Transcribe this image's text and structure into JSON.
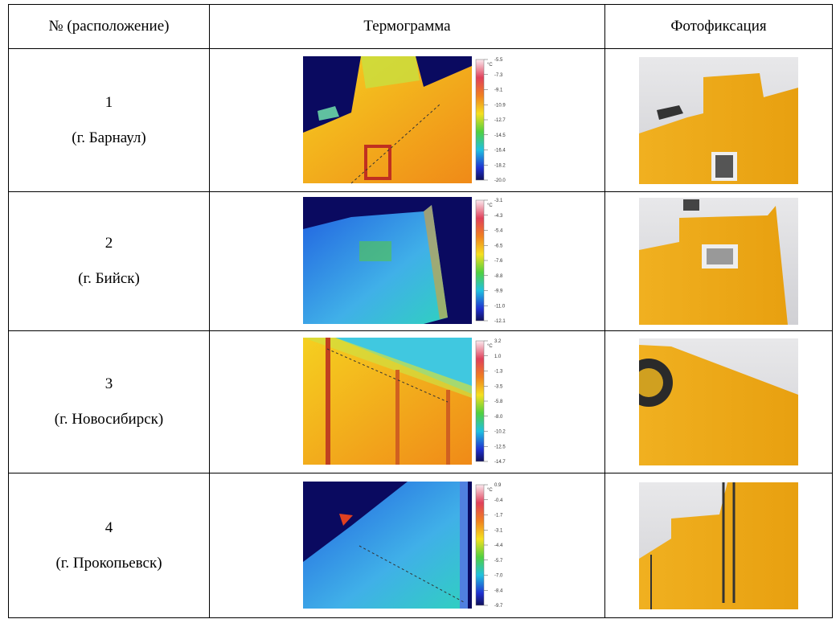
{
  "table": {
    "header": [
      "№ (расположение)",
      "Термограмма",
      "Фотофиксация"
    ],
    "rows": [
      {
        "number": "1",
        "city": "(г. Барнаул)",
        "unit": "°C",
        "scale": [
          "-5.5",
          "-7.3",
          "-9.1",
          "-10.9",
          "-12.7",
          "-14.5",
          "-16.4",
          "-18.2",
          "-20.0"
        ]
      },
      {
        "number": "2",
        "city": "(г. Бийск)",
        "unit": "°C",
        "scale": [
          "-3.1",
          "-4.3",
          "-5.4",
          "-6.5",
          "-7.6",
          "-8.8",
          "-9.9",
          "-11.0",
          "-12.1"
        ]
      },
      {
        "number": "3",
        "city": "(г. Новосибирск)",
        "unit": "°C",
        "scale": [
          "3.2",
          "1.0",
          "-1.3",
          "-3.5",
          "-5.8",
          "-8.0",
          "-10.2",
          "-12.5",
          "-14.7"
        ]
      },
      {
        "number": "4",
        "city": "(г. Прокопьевск)",
        "unit": "°C",
        "scale": [
          "0.9",
          "-0.4",
          "-1.7",
          "-3.1",
          "-4.4",
          "-5.7",
          "-7.0",
          "-8.4",
          "-9.7"
        ]
      }
    ]
  }
}
